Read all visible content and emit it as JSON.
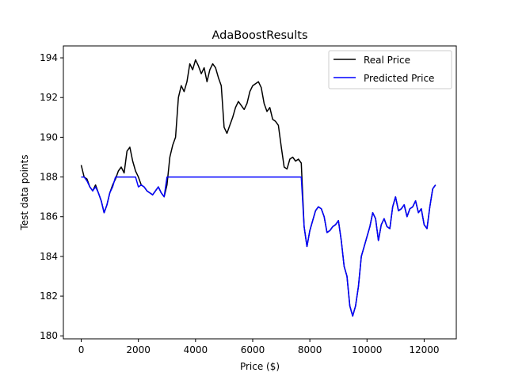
{
  "chart_data": {
    "type": "line",
    "title": "AdaBoostResults",
    "xlabel": "Price ($)",
    "ylabel": "Test data points",
    "xlim": [
      -625,
      13125
    ],
    "ylim": [
      179.85,
      194.6
    ],
    "xticks": [
      0,
      2000,
      4000,
      6000,
      8000,
      10000,
      12000
    ],
    "xtick_labels": [
      "0",
      "2000",
      "4000",
      "6000",
      "8000",
      "10000",
      "12000"
    ],
    "yticks": [
      180,
      182,
      184,
      186,
      188,
      190,
      192,
      194
    ],
    "ytick_labels": [
      "180",
      "182",
      "184",
      "186",
      "188",
      "190",
      "192",
      "194"
    ],
    "grid": false,
    "legend_position": "top-right",
    "series": [
      {
        "name": "Real Price",
        "color": "#000000",
        "x": [
          0,
          100,
          200,
          300,
          400,
          500,
          600,
          700,
          800,
          900,
          1000,
          1100,
          1200,
          1300,
          1400,
          1500,
          1600,
          1700,
          1800,
          1900,
          2000,
          2100,
          2200,
          2300,
          2400,
          2500,
          2600,
          2700,
          2800,
          2900,
          3000,
          3100,
          3200,
          3300,
          3400,
          3500,
          3600,
          3700,
          3800,
          3900,
          4000,
          4100,
          4200,
          4300,
          4400,
          4500,
          4600,
          4700,
          4800,
          4900,
          5000,
          5100,
          5200,
          5300,
          5400,
          5500,
          5600,
          5700,
          5800,
          5900,
          6000,
          6100,
          6200,
          6300,
          6400,
          6500,
          6600,
          6700,
          6800,
          6900,
          7000,
          7100,
          7200,
          7300,
          7400,
          7500,
          7600,
          7700,
          7800,
          7900,
          8000,
          8100,
          8200,
          8300,
          8400,
          8500,
          8600,
          8700,
          8800,
          8900,
          9000,
          9100,
          9200,
          9300,
          9400,
          9500,
          9600,
          9700,
          9800,
          9900,
          10000,
          10100,
          10200,
          10300,
          10400,
          10500,
          10600,
          10700,
          10800,
          10900,
          11000,
          11100,
          11200,
          11300,
          11400,
          11500,
          11600,
          11700,
          11800,
          11900,
          12000,
          12100,
          12200,
          12300,
          12400
        ],
        "values": [
          188.6,
          188.0,
          187.9,
          187.5,
          187.3,
          187.6,
          187.2,
          186.8,
          186.2,
          186.6,
          187.2,
          187.6,
          187.9,
          188.3,
          188.5,
          188.2,
          189.3,
          189.5,
          188.8,
          188.3,
          188.0,
          187.6,
          187.5,
          187.3,
          187.2,
          187.1,
          187.3,
          187.5,
          187.2,
          187.0,
          187.6,
          189.0,
          189.6,
          190.0,
          192.0,
          192.6,
          192.3,
          192.8,
          193.7,
          193.4,
          193.9,
          193.6,
          193.2,
          193.5,
          192.8,
          193.4,
          193.7,
          193.5,
          193.0,
          192.6,
          190.5,
          190.2,
          190.6,
          191.0,
          191.5,
          191.8,
          191.6,
          191.4,
          191.7,
          192.3,
          192.6,
          192.7,
          192.8,
          192.5,
          191.7,
          191.3,
          191.5,
          190.9,
          190.8,
          190.6,
          189.5,
          188.5,
          188.4,
          188.9,
          189.0,
          188.8,
          188.9,
          188.7,
          185.5,
          184.5,
          185.3,
          185.8,
          186.3,
          186.5,
          186.4,
          186.0,
          185.2,
          185.3,
          185.5,
          185.6,
          185.8,
          184.8,
          183.5,
          183.0,
          181.5,
          181.0,
          181.5,
          182.5,
          184.0,
          184.5,
          185.0,
          185.5,
          186.2,
          185.9,
          184.8,
          185.6,
          185.9,
          185.5,
          185.4,
          186.5,
          187.0,
          186.3,
          186.4,
          186.6,
          186.0,
          186.4,
          186.5,
          186.8,
          186.2,
          186.4,
          185.6,
          185.4,
          186.5,
          187.4,
          187.6
        ]
      },
      {
        "name": "Predicted Price",
        "color": "#0000ff",
        "x": [
          0,
          100,
          200,
          300,
          400,
          500,
          600,
          700,
          800,
          900,
          1000,
          1100,
          1200,
          1300,
          1400,
          1500,
          1600,
          1700,
          1800,
          1900,
          2000,
          2100,
          2200,
          2300,
          2400,
          2500,
          2600,
          2700,
          2800,
          2900,
          3000,
          3100,
          3200,
          3300,
          3400,
          3500,
          3600,
          3700,
          3800,
          3900,
          4000,
          4100,
          4200,
          4300,
          4400,
          4500,
          4600,
          4700,
          4800,
          4900,
          5000,
          5100,
          5200,
          5300,
          5400,
          5500,
          5600,
          5700,
          5800,
          5900,
          6000,
          6100,
          6200,
          6300,
          6400,
          6500,
          6600,
          6700,
          6800,
          6900,
          7000,
          7100,
          7200,
          7300,
          7400,
          7500,
          7600,
          7700,
          7800,
          7900,
          8000,
          8100,
          8200,
          8300,
          8400,
          8500,
          8600,
          8700,
          8800,
          8900,
          9000,
          9100,
          9200,
          9300,
          9400,
          9500,
          9600,
          9700,
          9800,
          9900,
          10000,
          10100,
          10200,
          10300,
          10400,
          10500,
          10600,
          10700,
          10800,
          10900,
          11000,
          11100,
          11200,
          11300,
          11400,
          11500,
          11600,
          11700,
          11800,
          11900,
          12000,
          12100,
          12200,
          12300,
          12400
        ],
        "values": [
          188.0,
          188.0,
          187.8,
          187.5,
          187.3,
          187.5,
          187.2,
          186.8,
          186.2,
          186.6,
          187.2,
          187.5,
          188.0,
          188.0,
          188.0,
          188.0,
          188.0,
          188.0,
          188.0,
          188.0,
          187.5,
          187.6,
          187.5,
          187.3,
          187.2,
          187.1,
          187.3,
          187.5,
          187.2,
          187.0,
          188.0,
          188.0,
          188.0,
          188.0,
          188.0,
          188.0,
          188.0,
          188.0,
          188.0,
          188.0,
          188.0,
          188.0,
          188.0,
          188.0,
          188.0,
          188.0,
          188.0,
          188.0,
          188.0,
          188.0,
          188.0,
          188.0,
          188.0,
          188.0,
          188.0,
          188.0,
          188.0,
          188.0,
          188.0,
          188.0,
          188.0,
          188.0,
          188.0,
          188.0,
          188.0,
          188.0,
          188.0,
          188.0,
          188.0,
          188.0,
          188.0,
          188.0,
          188.0,
          188.0,
          188.0,
          188.0,
          188.0,
          188.0,
          185.5,
          184.5,
          185.3,
          185.8,
          186.3,
          186.5,
          186.4,
          186.0,
          185.2,
          185.3,
          185.5,
          185.6,
          185.8,
          184.8,
          183.5,
          183.0,
          181.5,
          181.0,
          181.5,
          182.5,
          184.0,
          184.5,
          185.0,
          185.5,
          186.2,
          185.9,
          184.8,
          185.6,
          185.9,
          185.5,
          185.4,
          186.5,
          187.0,
          186.3,
          186.4,
          186.6,
          186.0,
          186.4,
          186.5,
          186.8,
          186.2,
          186.4,
          185.6,
          185.4,
          186.5,
          187.4,
          187.6
        ]
      }
    ]
  }
}
